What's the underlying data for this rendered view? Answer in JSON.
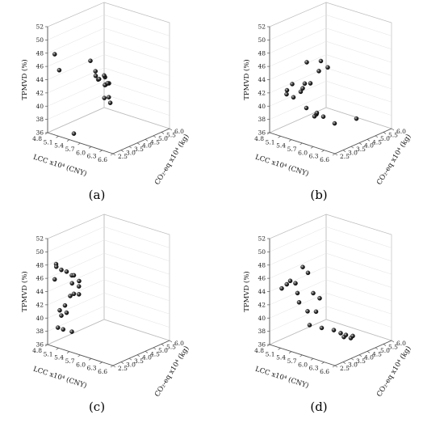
{
  "figure": {
    "panel_labels": [
      "(a)",
      "(b)",
      "(c)",
      "(d)"
    ]
  },
  "chart_data": [
    {
      "type": "scatter",
      "panel": "(a)",
      "xlabel": "LCC x10⁴ (CNY)",
      "ylabel": "CO₂-eq x10⁴ (kg)",
      "zlabel": "TPMVD (%)",
      "x_ticks": [
        "4.8",
        "5.1",
        "5.4",
        "5.7",
        "6.0",
        "6.3",
        "6.6"
      ],
      "y_ticks": [
        "2.5",
        "3.0",
        "3.5",
        "4.0",
        "4.5",
        "5.0",
        "5.5",
        "6.0"
      ],
      "z_ticks": [
        "36",
        "38",
        "40",
        "42",
        "44",
        "46",
        "48",
        "50",
        "52"
      ],
      "xlim": [
        4.8,
        6.6
      ],
      "ylim": [
        2.5,
        6.0
      ],
      "zlim": [
        36,
        52
      ],
      "grid": true,
      "points": [
        {
          "x": 4.95,
          "y": 2.6,
          "z": 48.0
        },
        {
          "x": 5.12,
          "y": 2.5,
          "z": 46.0
        },
        {
          "x": 5.4,
          "y": 3.8,
          "z": 46.5
        },
        {
          "x": 5.45,
          "y": 4.0,
          "z": 44.8
        },
        {
          "x": 5.5,
          "y": 3.9,
          "z": 44.3
        },
        {
          "x": 5.55,
          "y": 4.0,
          "z": 43.8
        },
        {
          "x": 5.48,
          "y": 4.1,
          "z": 43.5
        },
        {
          "x": 5.6,
          "y": 4.2,
          "z": 44.2
        },
        {
          "x": 5.58,
          "y": 4.3,
          "z": 43.8
        },
        {
          "x": 5.65,
          "y": 4.3,
          "z": 43.0
        },
        {
          "x": 5.62,
          "y": 4.2,
          "z": 42.8
        },
        {
          "x": 5.55,
          "y": 4.4,
          "z": 42.5
        },
        {
          "x": 5.6,
          "y": 4.5,
          "z": 42.7
        },
        {
          "x": 5.65,
          "y": 4.1,
          "z": 41.0
        },
        {
          "x": 5.55,
          "y": 4.6,
          "z": 40.4
        },
        {
          "x": 5.68,
          "y": 4.4,
          "z": 40.0
        },
        {
          "x": 5.3,
          "y": 3.0,
          "z": 36.2
        }
      ]
    },
    {
      "type": "scatter",
      "panel": "(b)",
      "xlabel": "LCC x10⁴ (CNY)",
      "ylabel": "CO₂-eq x10⁴ (kg)",
      "zlabel": "TPMVD (%)",
      "x_ticks": [
        "4.8",
        "5.1",
        "5.4",
        "5.7",
        "6.0",
        "6.3",
        "6.6"
      ],
      "y_ticks": [
        "2.5",
        "3.0",
        "3.5",
        "4.0",
        "4.5",
        "5.0",
        "5.5",
        "6.0"
      ],
      "z_ticks": [
        "36",
        "38",
        "40",
        "42",
        "44",
        "46",
        "48",
        "50",
        "52"
      ],
      "xlim": [
        4.8,
        6.6
      ],
      "ylim": [
        2.5,
        6.0
      ],
      "zlim": [
        36,
        52
      ],
      "grid": true,
      "points": [
        {
          "x": 5.9,
          "y": 3.2,
          "z": 48.0
        },
        {
          "x": 6.0,
          "y": 3.4,
          "z": 47.0
        },
        {
          "x": 5.6,
          "y": 3.0,
          "z": 47.5
        },
        {
          "x": 5.8,
          "y": 3.3,
          "z": 46.2
        },
        {
          "x": 5.7,
          "y": 3.0,
          "z": 44.5
        },
        {
          "x": 5.5,
          "y": 3.1,
          "z": 44.0
        },
        {
          "x": 5.4,
          "y": 3.2,
          "z": 43.0
        },
        {
          "x": 5.2,
          "y": 3.0,
          "z": 43.5
        },
        {
          "x": 5.1,
          "y": 2.9,
          "z": 42.5
        },
        {
          "x": 5.3,
          "y": 3.3,
          "z": 42.2
        },
        {
          "x": 5.1,
          "y": 3.3,
          "z": 41.0
        },
        {
          "x": 5.0,
          "y": 3.1,
          "z": 41.5
        },
        {
          "x": 5.5,
          "y": 3.2,
          "z": 40.2
        },
        {
          "x": 5.7,
          "y": 3.4,
          "z": 39.6
        },
        {
          "x": 5.6,
          "y": 3.6,
          "z": 39.0
        },
        {
          "x": 5.7,
          "y": 3.8,
          "z": 38.6
        },
        {
          "x": 5.5,
          "y": 3.7,
          "z": 38.4
        },
        {
          "x": 6.1,
          "y": 3.6,
          "z": 38.5
        },
        {
          "x": 6.3,
          "y": 4.5,
          "z": 38.6
        }
      ]
    },
    {
      "type": "scatter",
      "panel": "(c)",
      "xlabel": "LCC x10⁴ (CNY)",
      "ylabel": "CO₂-eq x10⁴ (kg)",
      "zlabel": "TPMVD (%)",
      "x_ticks": [
        "4.8",
        "5.1",
        "5.4",
        "5.7",
        "6.0",
        "6.3",
        "6.6"
      ],
      "y_ticks": [
        "2.5",
        "3.0",
        "3.5",
        "4.0",
        "4.5",
        "5.0",
        "5.5",
        "6.0"
      ],
      "z_ticks": [
        "36",
        "38",
        "40",
        "42",
        "44",
        "46",
        "48",
        "50",
        "52"
      ],
      "xlim": [
        4.8,
        6.6
      ],
      "ylim": [
        2.5,
        6.0
      ],
      "zlim": [
        36,
        52
      ],
      "grid": true,
      "points": [
        {
          "x": 4.9,
          "y": 2.8,
          "z": 48.0
        },
        {
          "x": 4.95,
          "y": 2.7,
          "z": 47.8
        },
        {
          "x": 5.0,
          "y": 2.9,
          "z": 47.2
        },
        {
          "x": 5.1,
          "y": 3.0,
          "z": 47.0
        },
        {
          "x": 5.2,
          "y": 3.1,
          "z": 46.5
        },
        {
          "x": 5.3,
          "y": 3.0,
          "z": 46.8
        },
        {
          "x": 5.4,
          "y": 3.1,
          "z": 46.0
        },
        {
          "x": 4.95,
          "y": 2.6,
          "z": 46.0
        },
        {
          "x": 5.25,
          "y": 3.0,
          "z": 45.5
        },
        {
          "x": 5.35,
          "y": 3.2,
          "z": 45.0
        },
        {
          "x": 5.3,
          "y": 3.0,
          "z": 44.0
        },
        {
          "x": 5.2,
          "y": 3.0,
          "z": 43.5
        },
        {
          "x": 5.35,
          "y": 3.2,
          "z": 43.8
        },
        {
          "x": 5.1,
          "y": 2.9,
          "z": 42.0
        },
        {
          "x": 5.0,
          "y": 2.8,
          "z": 41.2
        },
        {
          "x": 5.1,
          "y": 3.0,
          "z": 40.8
        },
        {
          "x": 5.0,
          "y": 2.9,
          "z": 40.3
        },
        {
          "x": 4.95,
          "y": 2.8,
          "z": 38.5
        },
        {
          "x": 5.05,
          "y": 2.9,
          "z": 38.3
        },
        {
          "x": 5.2,
          "y": 3.1,
          "z": 38.0
        }
      ]
    },
    {
      "type": "scatter",
      "panel": "(d)",
      "xlabel": "LCC x10⁴ (CNY)",
      "ylabel": "CO₂-eq x10⁴ (kg)",
      "zlabel": "TPMVD (%)",
      "x_ticks": [
        "4.8",
        "5.1",
        "5.4",
        "5.7",
        "6.0",
        "6.3",
        "6.6"
      ],
      "y_ticks": [
        "2.5",
        "3.0",
        "3.5",
        "4.0",
        "4.5",
        "5.0",
        "5.5",
        "6.0"
      ],
      "z_ticks": [
        "36",
        "38",
        "40",
        "42",
        "44",
        "46",
        "48",
        "50",
        "52"
      ],
      "xlim": [
        4.8,
        6.6
      ],
      "ylim": [
        2.5,
        6.0
      ],
      "zlim": [
        36,
        52
      ],
      "grid": true,
      "points": [
        {
          "x": 5.4,
          "y": 3.2,
          "z": 48.0
        },
        {
          "x": 5.5,
          "y": 3.3,
          "z": 47.2
        },
        {
          "x": 5.1,
          "y": 3.1,
          "z": 45.5
        },
        {
          "x": 5.2,
          "y": 3.2,
          "z": 45.2
        },
        {
          "x": 5.05,
          "y": 3.0,
          "z": 45.0
        },
        {
          "x": 5.0,
          "y": 2.8,
          "z": 44.5
        },
        {
          "x": 5.3,
          "y": 3.1,
          "z": 44.0
        },
        {
          "x": 5.6,
          "y": 3.4,
          "z": 44.2
        },
        {
          "x": 5.6,
          "y": 3.8,
          "z": 43.0
        },
        {
          "x": 5.3,
          "y": 3.2,
          "z": 42.5
        },
        {
          "x": 5.4,
          "y": 3.5,
          "z": 41.0
        },
        {
          "x": 5.5,
          "y": 3.8,
          "z": 40.8
        },
        {
          "x": 5.5,
          "y": 3.4,
          "z": 39.2
        },
        {
          "x": 5.7,
          "y": 3.7,
          "z": 38.8
        },
        {
          "x": 5.9,
          "y": 4.0,
          "z": 38.5
        },
        {
          "x": 6.0,
          "y": 4.2,
          "z": 38.0
        },
        {
          "x": 6.1,
          "y": 4.3,
          "z": 37.8
        },
        {
          "x": 6.2,
          "y": 4.5,
          "z": 37.6
        },
        {
          "x": 6.0,
          "y": 4.4,
          "z": 37.2
        },
        {
          "x": 6.1,
          "y": 4.6,
          "z": 37.0
        }
      ]
    }
  ]
}
